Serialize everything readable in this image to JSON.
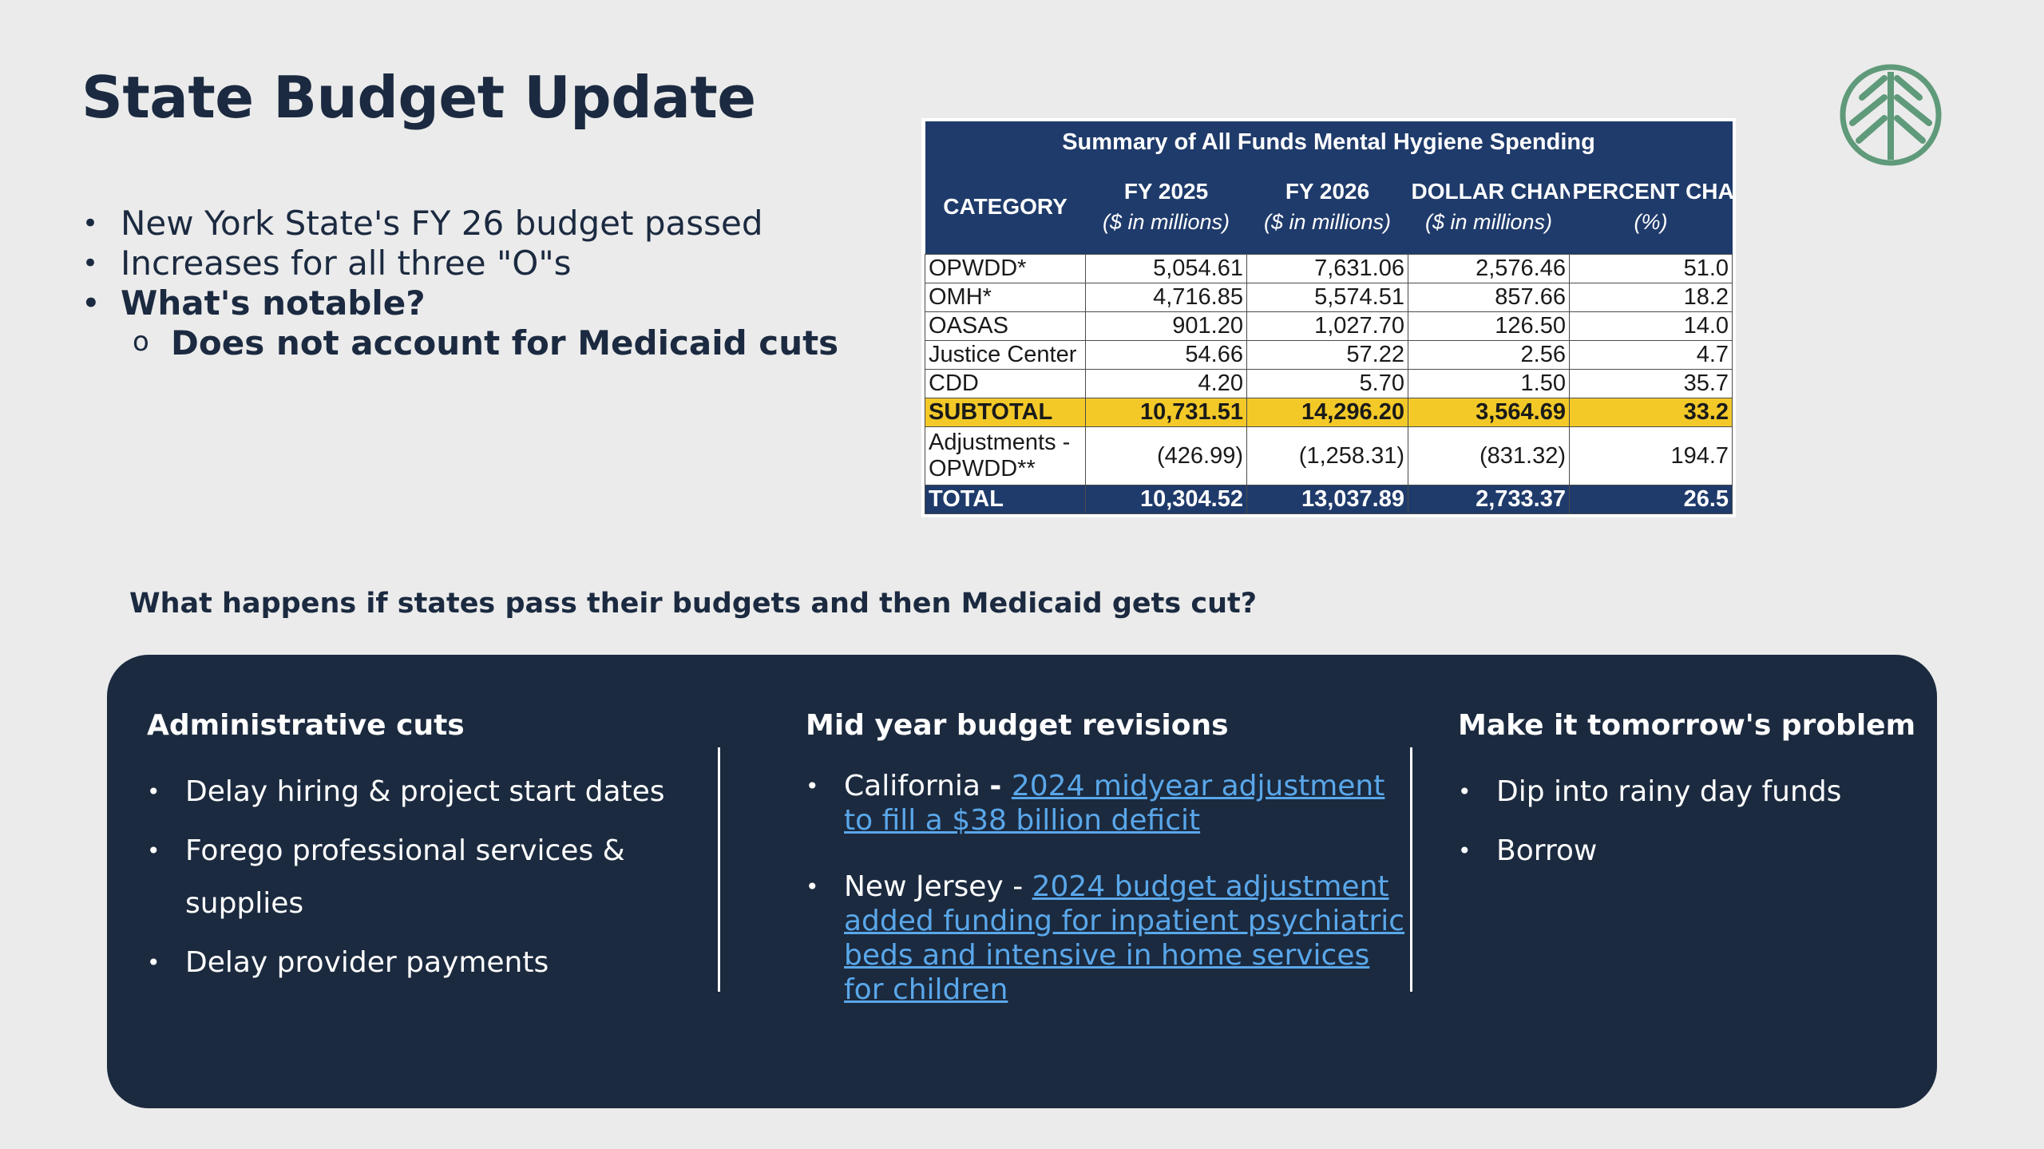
{
  "slide": {
    "title": "State Budget Update",
    "bullets": [
      "New York State's FY 26 budget passed",
      "Increases for all three \"O\"s",
      "What's notable?"
    ],
    "sub_bullet": "Does not account for Medicaid cuts",
    "logo_icon": "tree-leaf-logo-icon",
    "question": "What happens if states pass their budgets and then Medicaid gets cut?"
  },
  "table": {
    "caption": "Summary of All Funds Mental Hygiene Spending",
    "headers": {
      "category": "CATEGORY",
      "fy2025": "FY 2025",
      "fy2025_unit": "($ in millions)",
      "fy2026": "FY 2026",
      "fy2026_unit": "($ in millions)",
      "dollar": "DOLLAR CHANGE",
      "dollar_unit": "($ in millions)",
      "percent": "PERCENT CHANGE",
      "percent_unit": "(%)"
    },
    "rows": [
      {
        "category": "OPWDD*",
        "fy2025": "5,054.61",
        "fy2026": "7,631.06",
        "dollar": "2,576.46",
        "percent": "51.0"
      },
      {
        "category": "OMH*",
        "fy2025": "4,716.85",
        "fy2026": "5,574.51",
        "dollar": "857.66",
        "percent": "18.2"
      },
      {
        "category": "OASAS",
        "fy2025": "901.20",
        "fy2026": "1,027.70",
        "dollar": "126.50",
        "percent": "14.0"
      },
      {
        "category": "Justice Center",
        "fy2025": "54.66",
        "fy2026": "57.22",
        "dollar": "2.56",
        "percent": "4.7"
      },
      {
        "category": "CDD",
        "fy2025": "4.20",
        "fy2026": "5.70",
        "dollar": "1.50",
        "percent": "35.7"
      }
    ],
    "subtotal": {
      "category": "SUBTOTAL",
      "fy2025": "10,731.51",
      "fy2026": "14,296.20",
      "dollar": "3,564.69",
      "percent": "33.2"
    },
    "adjustments": {
      "category": "Adjustments - OPWDD**",
      "fy2025": "(426.99)",
      "fy2026": "(1,258.31)",
      "dollar": "(831.32)",
      "percent": "194.7"
    },
    "total": {
      "category": "TOTAL",
      "fy2025": "10,304.52",
      "fy2026": "13,037.89",
      "dollar": "2,733.37",
      "percent": "26.5"
    },
    "colors": {
      "header_bg": "#1f3b6b",
      "subtotal_bg": "#f3c928"
    }
  },
  "panel": {
    "colors": {
      "background": "#1b2a3f",
      "link": "#5aa7ea"
    },
    "col1": {
      "heading": "Administrative cuts",
      "items": [
        "Delay hiring & project start dates",
        "Forego professional services & supplies",
        "Delay provider payments"
      ]
    },
    "col2": {
      "heading": "Mid year budget revisions",
      "items": [
        {
          "lead": "California ",
          "sep": "- ",
          "link": "2024 midyear adjustment to fill a $38 billion deficit"
        },
        {
          "lead": "New Jersey ",
          "sep": "- ",
          "link": "2024 budget adjustment added funding for inpatient psychiatric beds and intensive in home services for children"
        }
      ]
    },
    "col3": {
      "heading": "Make it tomorrow's problem",
      "items": [
        "Dip into rainy day funds",
        "Borrow"
      ]
    }
  }
}
